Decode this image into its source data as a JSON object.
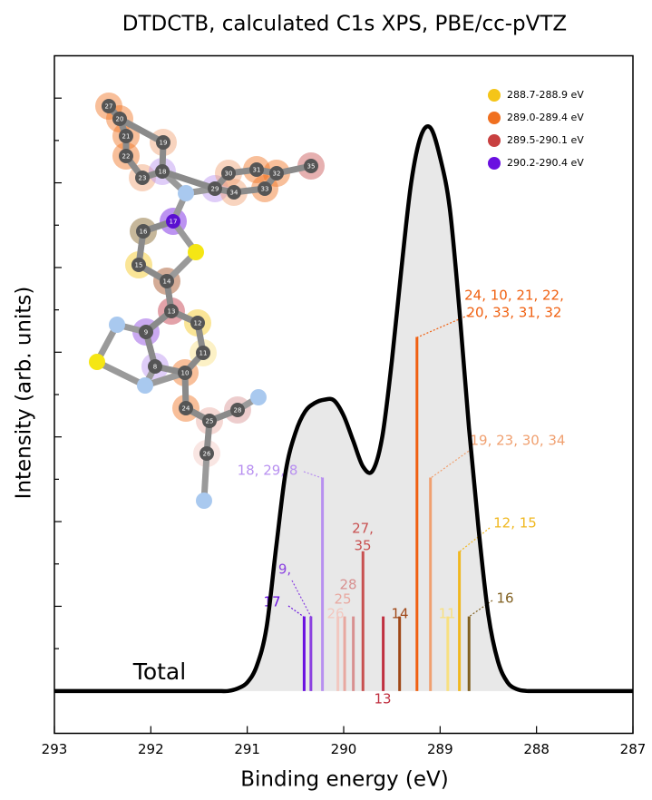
{
  "chart_data": {
    "type": "line",
    "title": "DTDCTB, calculated C1s XPS, PBE/cc-pVTZ",
    "x_label": "Binding energy (eV)",
    "y_label": "Intensity (arb. units)",
    "annotation": "Total",
    "xlim": [
      293,
      287
    ],
    "xticks": [
      293,
      292,
      291,
      290,
      289,
      288,
      287
    ],
    "ylim": [
      -0.5,
      7.5
    ],
    "yticks": [
      0,
      0.5,
      1,
      1.5,
      2,
      2.5,
      3,
      3.5,
      4,
      4.5,
      5,
      5.5,
      6,
      6.5,
      7
    ],
    "x": [
      293,
      292.9,
      292.8,
      292.7,
      292.6,
      292.5,
      292.4,
      292.3,
      292.2,
      292.1,
      292,
      291.9,
      291.8,
      291.7,
      291.6,
      291.5,
      291.4,
      291.3,
      291.2,
      291.1,
      291,
      290.9,
      290.8,
      290.7,
      290.6,
      290.5,
      290.4,
      290.3,
      290.2,
      290.1,
      290,
      289.9,
      289.8,
      289.7,
      289.6,
      289.5,
      289.4,
      289.3,
      289.2,
      289.1,
      289,
      288.9,
      288.8,
      288.7,
      288.6,
      288.5,
      288.4,
      288.3,
      288.2,
      288.1,
      288,
      287.9,
      287.8,
      287.7,
      287.6,
      287.5,
      287.4,
      287.3,
      287.2,
      287.1,
      287
    ],
    "series": [
      {
        "name": "Total",
        "color": "#000000",
        "fill": "#e8e8e8",
        "values": [
          0,
          0,
          0,
          0,
          0,
          0,
          0,
          0,
          0,
          0,
          0,
          0,
          0,
          0,
          0,
          0,
          0,
          0,
          0,
          0.03,
          0.1,
          0.3,
          0.75,
          1.7,
          2.6,
          3.05,
          3.3,
          3.4,
          3.44,
          3.43,
          3.25,
          2.95,
          2.65,
          2.6,
          3.0,
          3.9,
          5.0,
          6.0,
          6.55,
          6.65,
          6.3,
          5.7,
          4.5,
          3.1,
          1.9,
          0.9,
          0.35,
          0.1,
          0.02,
          0,
          0,
          0,
          0,
          0,
          0,
          0,
          0,
          0,
          0,
          0,
          0
        ]
      }
    ],
    "sticks": [
      {
        "label": [
          "17"
        ],
        "x": 290.41,
        "value": 0.88,
        "color": "#6a10e0"
      },
      {
        "label": [
          "9,"
        ],
        "x": 290.34,
        "value": 0.88,
        "color": "#8a40e0"
      },
      {
        "label": [
          "18, 29, 8"
        ],
        "x": 290.22,
        "value": 2.52,
        "color": "#b890f0"
      },
      {
        "label": [
          "26"
        ],
        "x": 290.06,
        "value": 0.88,
        "color": "#f2c8c0"
      },
      {
        "label": [
          "25"
        ],
        "x": 289.99,
        "value": 0.88,
        "color": "#e8a8a0"
      },
      {
        "label": [
          "28"
        ],
        "x": 289.9,
        "value": 0.88,
        "color": "#d89090"
      },
      {
        "label": [
          "27,",
          "35"
        ],
        "x": 289.8,
        "value": 1.65,
        "color": "#c85050"
      },
      {
        "label": [
          "13"
        ],
        "x": 289.59,
        "value": 0.88,
        "color": "#c03040"
      },
      {
        "label": [
          "14"
        ],
        "x": 289.42,
        "value": 0.88,
        "color": "#a04818"
      },
      {
        "label": [
          "24, 10, 21, 22,",
          "20, 33, 31, 32"
        ],
        "x": 289.24,
        "value": 4.18,
        "color": "#f06010"
      },
      {
        "label": [
          "19, 23, 30, 34"
        ],
        "x": 289.1,
        "value": 2.52,
        "color": "#f0a070"
      },
      {
        "label": [
          "11"
        ],
        "x": 288.92,
        "value": 0.88,
        "color": "#f8e080"
      },
      {
        "label": [
          "12, 15"
        ],
        "x": 288.8,
        "value": 1.65,
        "color": "#f0b820"
      },
      {
        "label": [
          "16"
        ],
        "x": 288.7,
        "value": 0.88,
        "color": "#806020"
      }
    ],
    "legend": [
      {
        "name": "288.7-288.9 eV",
        "color": "#f5c518"
      },
      {
        "name": "289.0-289.4 eV",
        "color": "#f07020"
      },
      {
        "name": "289.5-290.1 eV",
        "color": "#c84040"
      },
      {
        "name": "290.2-290.4 eV",
        "color": "#6a10e0"
      }
    ],
    "inset_atom_labels": [
      "27",
      "20",
      "21",
      "22",
      "23",
      "19",
      "18",
      "29",
      "30",
      "31",
      "32",
      "33",
      "34",
      "35",
      "17",
      "16",
      "15",
      "14",
      "13",
      "12",
      "11",
      "10",
      "9",
      "8",
      "24",
      "25",
      "28",
      "26"
    ]
  }
}
